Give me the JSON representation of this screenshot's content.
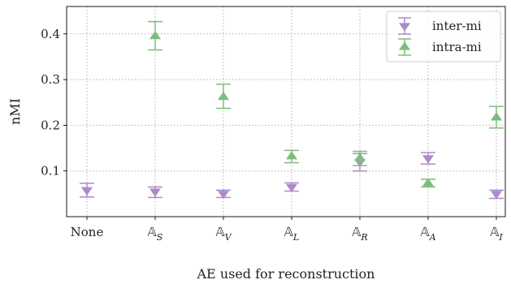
{
  "chart_data": {
    "type": "scatter",
    "subtype": "errorbar",
    "title": "",
    "xlabel": "AE used for reconstruction",
    "ylabel": "nMI",
    "categories": [
      {
        "label": "None"
      },
      {
        "label": "A",
        "sub": "S"
      },
      {
        "label": "A",
        "sub": "V"
      },
      {
        "label": "A",
        "sub": "L"
      },
      {
        "label": "A",
        "sub": "R"
      },
      {
        "label": "A",
        "sub": "A"
      },
      {
        "label": "A",
        "sub": "I"
      }
    ],
    "ylim": [
      0.0,
      0.46
    ],
    "yticks": [
      0.1,
      0.2,
      0.3,
      0.4
    ],
    "ytick_labels": [
      "0.1",
      "0.2",
      "0.3",
      "0.4"
    ],
    "grid": true,
    "legend_position": "top-right",
    "series": [
      {
        "name": "inter-mi",
        "marker": "triangle-down",
        "color": "#ab8bc9",
        "values": [
          0.058,
          0.055,
          0.05,
          0.065,
          0.12,
          0.128,
          0.05
        ],
        "err_low": [
          0.043,
          0.042,
          0.042,
          0.056,
          0.1,
          0.115,
          0.04
        ],
        "err_high": [
          0.073,
          0.065,
          0.058,
          0.074,
          0.138,
          0.14,
          0.058
        ]
      },
      {
        "name": "intra-mi",
        "marker": "triangle-up",
        "color": "#7cbd7c",
        "values": [
          null,
          0.395,
          0.262,
          0.132,
          0.128,
          0.073,
          0.217
        ],
        "err_low": [
          null,
          0.365,
          0.237,
          0.118,
          0.112,
          0.065,
          0.194
        ],
        "err_high": [
          null,
          0.427,
          0.29,
          0.145,
          0.143,
          0.082,
          0.241
        ]
      }
    ]
  },
  "double_struck_glyph": "𝔸"
}
